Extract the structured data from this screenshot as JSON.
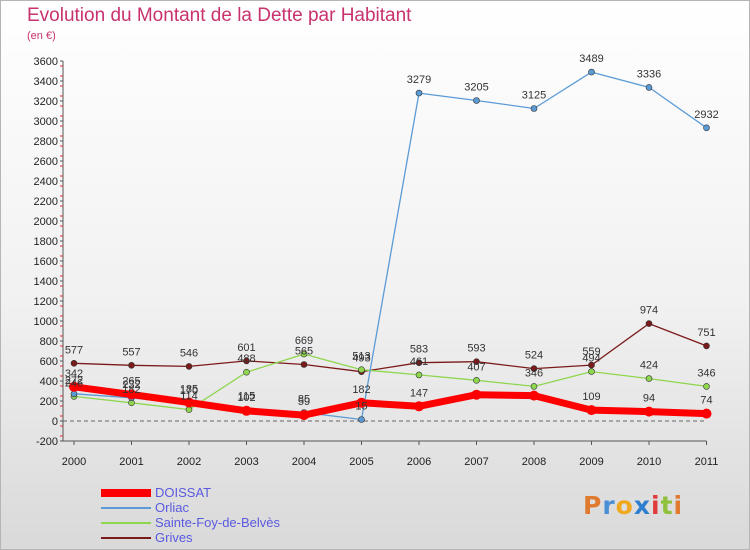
{
  "header": {
    "title": "Evolution du Montant de la Dette par Habitant",
    "unit": "(en €)"
  },
  "logo": {
    "text": "Proxiti",
    "letter_colors": [
      "#e07a2f",
      "#4a8fd6",
      "#f0a820",
      "#2f7fd0",
      "#e03a3a",
      "#8fc23a",
      "#e07a2f"
    ]
  },
  "chart_data": {
    "type": "line",
    "title": "Evolution du Montant de la Dette par Habitant",
    "subtitle": "(en €)",
    "xlabel": "",
    "ylabel": "",
    "x": [
      "2000",
      "2001",
      "2002",
      "2003",
      "2004",
      "2005",
      "2006",
      "2007",
      "2008",
      "2009",
      "2010",
      "2011"
    ],
    "ylim": [
      -200,
      3600
    ],
    "yticks": [
      -200,
      0,
      200,
      400,
      600,
      800,
      1000,
      1200,
      1400,
      1600,
      1800,
      2000,
      2200,
      2400,
      2600,
      2800,
      3000,
      3200,
      3400,
      3600
    ],
    "grid": false,
    "legend_position": "bottom-left",
    "series": [
      {
        "name": "DOISSAT",
        "color": "#ff0000",
        "values": [
          342,
          265,
          185,
          102,
          59,
          182,
          147,
          263,
          254,
          109,
          94,
          74
        ],
        "labels": [
          "342",
          "265",
          "185",
          "102",
          "59",
          "182",
          "147",
          "",
          "",
          "109",
          "94",
          "74"
        ]
      },
      {
        "name": "Orliac",
        "color": "#5b9bd5",
        "values": [
          272,
          232,
          170,
          115,
          85,
          15,
          3279,
          3205,
          3125,
          3489,
          3336,
          2932
        ],
        "labels": [
          "272",
          "232",
          "170",
          "115",
          "85",
          "15",
          "3279",
          "3205",
          "3125",
          "3489",
          "3336",
          "2932"
        ]
      },
      {
        "name": "Sainte-Foy-de-Belvès",
        "color": "#8fd64f",
        "values": [
          246,
          182,
          114,
          488,
          669,
          513,
          461,
          407,
          346,
          494,
          424,
          346
        ],
        "labels": [
          "246",
          "182",
          "114",
          "488",
          "669",
          "513",
          "461",
          "407",
          "346",
          "494",
          "424",
          "346"
        ]
      },
      {
        "name": "Grives",
        "color": "#7b1a1a",
        "values": [
          577,
          557,
          546,
          601,
          565,
          493,
          583,
          593,
          524,
          559,
          974,
          751
        ],
        "labels": [
          "577",
          "557",
          "546",
          "601",
          "565",
          "493",
          "583",
          "593",
          "524",
          "559",
          "974",
          "751"
        ]
      }
    ]
  }
}
